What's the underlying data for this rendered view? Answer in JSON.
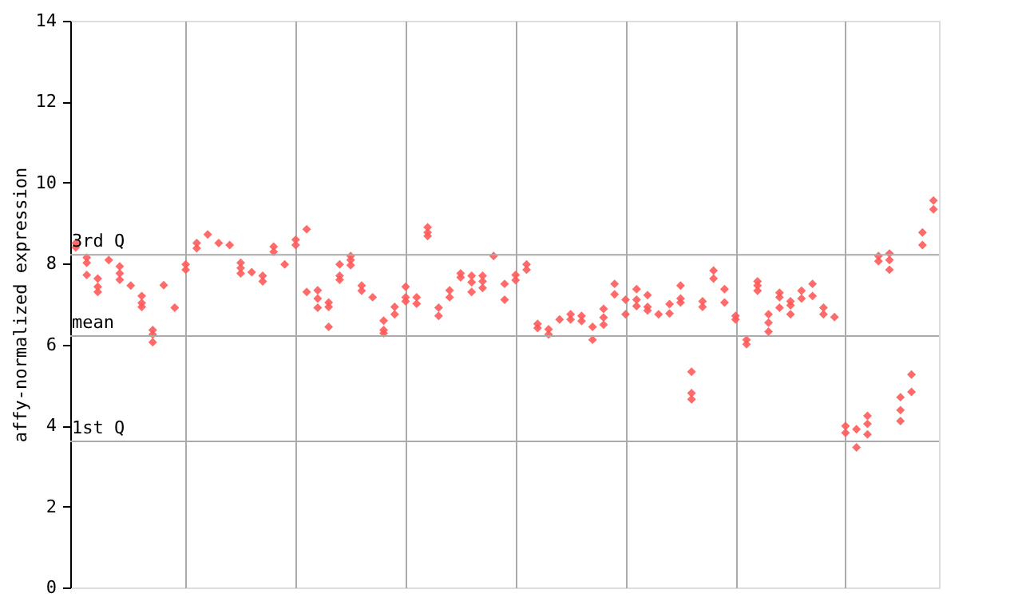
{
  "chart_data": {
    "type": "scatter",
    "ylabel": "affy-normalized expression",
    "categories": [
      null,
      null,
      null,
      null,
      null,
      null,
      null,
      null,
      null,
      null,
      null,
      null,
      null,
      null,
      null,
      null,
      null,
      null,
      null,
      null,
      null,
      null,
      null,
      null,
      null,
      null,
      null,
      null,
      null,
      null,
      null,
      null,
      null,
      null,
      null,
      null,
      null,
      null,
      null,
      null,
      null,
      null,
      null,
      null,
      null,
      null,
      null,
      null,
      null,
      null,
      null,
      null,
      null,
      null,
      null,
      null,
      null,
      null,
      null,
      null,
      null,
      null,
      null,
      null,
      null,
      null,
      null,
      null,
      null,
      null,
      null,
      null,
      null,
      null,
      null,
      null,
      null,
      null,
      null
    ],
    "series": [
      {
        "color": "#ff5a5a",
        "values": [
          8.51,
          8.15,
          7.63,
          8.09,
          7.93,
          7.46,
          7.2,
          6.36,
          7.47,
          6.91,
          7.98,
          8.51,
          8.72,
          8.51,
          8.46,
          8.02,
          7.79,
          7.7,
          8.42,
          7.98,
          8.59,
          8.85,
          7.34,
          7.04,
          7.98,
          8.19,
          7.46,
          7.17,
          6.59,
          6.93,
          7.43,
          7.17,
          8.9,
          6.91,
          7.34,
          7.76,
          7.7,
          7.7,
          8.19,
          7.5,
          7.72,
          7.98,
          6.51,
          6.38,
          6.62,
          6.75,
          6.71,
          6.44,
          6.88,
          7.5,
          7.11,
          7.37,
          7.22,
          6.75,
          7.0,
          7.46,
          5.33,
          7.07,
          7.83,
          7.37,
          6.71,
          6.12,
          7.56,
          6.75,
          7.28,
          7.07,
          7.33,
          7.5,
          6.91,
          6.68,
          3.99,
          3.91,
          4.24,
          8.19,
          8.25,
          4.7,
          5.26,
          8.77,
          9.56
        ]
      },
      {
        "color": "#ff5a5a",
        "values": [
          8.4,
          8.02,
          7.43,
          null,
          7.76,
          null,
          7.03,
          6.25,
          null,
          null,
          7.85,
          8.38,
          null,
          null,
          null,
          7.89,
          null,
          7.56,
          8.29,
          null,
          8.46,
          7.3,
          7.14,
          6.93,
          7.7,
          8.09,
          7.33,
          null,
          6.36,
          6.75,
          7.17,
          7.01,
          8.77,
          6.71,
          7.17,
          7.66,
          7.54,
          7.56,
          null,
          7.11,
          7.59,
          7.85,
          6.41,
          6.25,
          null,
          6.62,
          6.58,
          6.12,
          6.67,
          7.24,
          6.75,
          7.11,
          6.93,
          null,
          6.77,
          7.14,
          4.8,
          6.93,
          7.63,
          7.04,
          6.62,
          6.01,
          7.46,
          6.54,
          7.17,
          6.97,
          7.14,
          7.2,
          6.75,
          null,
          3.82,
          3.46,
          4.04,
          8.06,
          8.09,
          4.38,
          4.83,
          8.46,
          9.34
        ]
      },
      {
        "color": "#ff5a5a",
        "values": [
          null,
          7.72,
          7.3,
          null,
          7.6,
          null,
          6.93,
          6.06,
          null,
          null,
          null,
          null,
          null,
          null,
          null,
          7.76,
          null,
          null,
          null,
          null,
          null,
          null,
          6.91,
          6.44,
          7.6,
          7.96,
          null,
          null,
          6.28,
          null,
          7.07,
          null,
          8.68,
          null,
          null,
          null,
          7.3,
          7.4,
          null,
          null,
          null,
          null,
          null,
          null,
          null,
          null,
          null,
          null,
          6.49,
          null,
          null,
          6.95,
          6.84,
          null,
          null,
          7.04,
          4.65,
          null,
          null,
          null,
          null,
          null,
          7.33,
          6.32,
          6.91,
          6.75,
          null,
          null,
          null,
          null,
          null,
          null,
          3.78,
          null,
          7.85,
          4.11,
          null,
          null,
          null
        ]
      }
    ],
    "marker": "diamond",
    "ylim": [
      0,
      14
    ],
    "yticks": [
      0,
      2,
      4,
      6,
      8,
      10,
      12,
      14
    ],
    "grid": "x",
    "ref_lines": [
      {
        "axis": "y",
        "value": 8.22,
        "label": "3rd Q",
        "color": "#aaaaaa"
      },
      {
        "axis": "y",
        "value": 6.21,
        "label": "mean",
        "color": "#aaaaaa"
      },
      {
        "axis": "y",
        "value": 3.61,
        "label": "1st Q",
        "color": "#aaaaaa"
      }
    ]
  }
}
